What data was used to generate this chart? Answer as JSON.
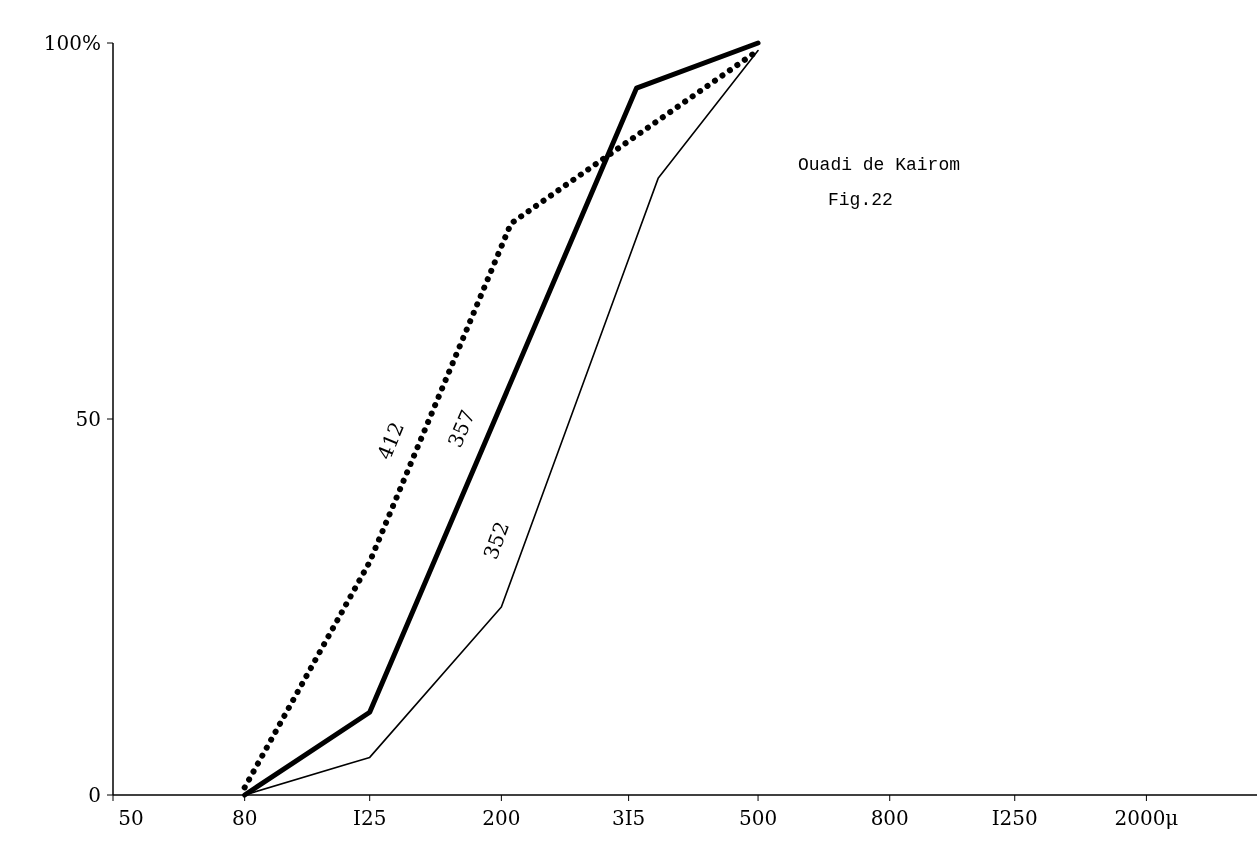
{
  "chart_data": {
    "type": "line",
    "annotations": [
      "Ouadi de Kairom",
      "Fig.22"
    ],
    "log": "x",
    "xlim": [
      50,
      3000
    ],
    "ylim": [
      0,
      100
    ],
    "xticks": [
      {
        "value": 50,
        "label": "50"
      },
      {
        "value": 80,
        "label": "80"
      },
      {
        "value": 125,
        "label": "I25"
      },
      {
        "value": 200,
        "label": "200"
      },
      {
        "value": 315,
        "label": "3I5"
      },
      {
        "value": 500,
        "label": "500"
      },
      {
        "value": 800,
        "label": "800"
      },
      {
        "value": 1250,
        "label": "I250"
      },
      {
        "value": 2000,
        "label": "2000μ"
      }
    ],
    "yticks": [
      0,
      50,
      {
        "value": 100,
        "label": "100%"
      }
    ],
    "grid": false,
    "marker": "none",
    "series": [
      {
        "name": "412",
        "color": "#000000",
        "line_style": "dotted",
        "x": [
          80,
          125,
          207,
          500
        ],
        "values": [
          1,
          31,
          76,
          99
        ]
      },
      {
        "name": "357",
        "color": "#000000",
        "line_style": "solid",
        "x": [
          80,
          125,
          324,
          500
        ],
        "values": [
          0,
          11,
          94,
          100
        ]
      },
      {
        "name": "352",
        "color": "#000000",
        "line_style": "solid",
        "x": [
          80,
          125,
          200,
          350,
          500
        ],
        "values": [
          0,
          5,
          25,
          82,
          99
        ]
      }
    ]
  }
}
